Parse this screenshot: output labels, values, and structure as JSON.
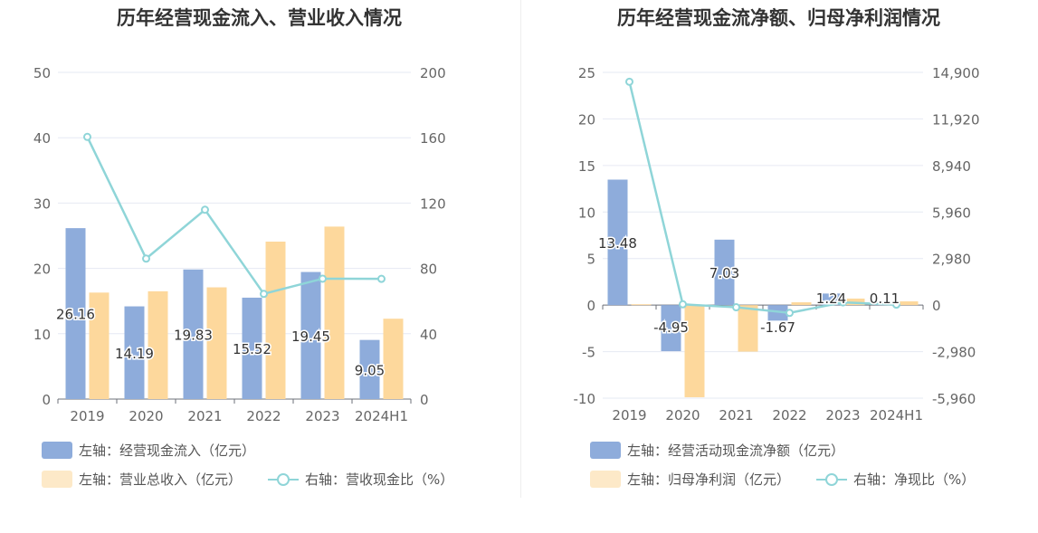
{
  "colors": {
    "blue": "#8eacdb",
    "orange": "#fdd89c",
    "teal": "#8fd5d8",
    "grid": "#e6e9f3",
    "axis": "#6e7079",
    "label": "#333333"
  },
  "chart_data": [
    {
      "type": "bar",
      "title": "历年经营现金流入、营业收入情况",
      "categories": [
        "2019",
        "2020",
        "2021",
        "2022",
        "2023",
        "2024H1"
      ],
      "left_axis": {
        "ylim": [
          0,
          50
        ],
        "ticks": [
          "50",
          "40",
          "30",
          "20",
          "10",
          "0"
        ]
      },
      "right_axis": {
        "ylim": [
          0,
          200
        ],
        "ticks": [
          "200",
          "160",
          "120",
          "80",
          "40",
          "0"
        ]
      },
      "series": [
        {
          "name": "左轴：经营现金流入（亿元）",
          "axis": "left",
          "kind": "bar",
          "values": [
            26.16,
            14.19,
            19.83,
            15.52,
            19.45,
            9.05
          ],
          "labels": [
            "26.16",
            "14.19",
            "19.83",
            "15.52",
            "19.45",
            "9.05"
          ]
        },
        {
          "name": "左轴：营业总收入（亿元）",
          "axis": "left",
          "kind": "bar",
          "values": [
            16.3,
            16.5,
            17.1,
            24.1,
            26.4,
            12.3
          ]
        },
        {
          "name": "右轴：营收现金比（%）",
          "axis": "right",
          "kind": "line",
          "values": [
            160.5,
            86.0,
            115.9,
            64.4,
            73.7,
            73.6
          ]
        }
      ]
    },
    {
      "type": "bar",
      "title": "历年经营现金流净额、归母净利润情况",
      "categories": [
        "2019",
        "2020",
        "2021",
        "2022",
        "2023",
        "2024H1"
      ],
      "left_axis": {
        "ylim": [
          -10,
          25
        ],
        "ticks": [
          "25",
          "20",
          "15",
          "10",
          "5",
          "0",
          "-5",
          "-10"
        ]
      },
      "right_axis": {
        "ylim": [
          -5960,
          14900
        ],
        "ticks": [
          "14,900",
          "11,920",
          "8,940",
          "5,960",
          "2,980",
          "0",
          "-2,980",
          "-5,960"
        ]
      },
      "series": [
        {
          "name": "左轴：经营活动现金流净额（亿元）",
          "axis": "left",
          "kind": "bar",
          "values": [
            13.48,
            -4.95,
            7.03,
            -1.67,
            1.24,
            0.11
          ],
          "labels": [
            "13.48",
            "-4.95",
            "7.03",
            "-1.67",
            "1.24",
            "0.11"
          ]
        },
        {
          "name": "左轴：归母净利润（亿元）",
          "axis": "left",
          "kind": "bar",
          "values": [
            0.09,
            -9.9,
            -5.0,
            0.3,
            0.7,
            0.4
          ]
        },
        {
          "name": "右轴：净现比（%）",
          "axis": "right",
          "kind": "line",
          "values": [
            14300,
            50,
            -140,
            -500,
            177,
            28
          ]
        }
      ]
    }
  ]
}
